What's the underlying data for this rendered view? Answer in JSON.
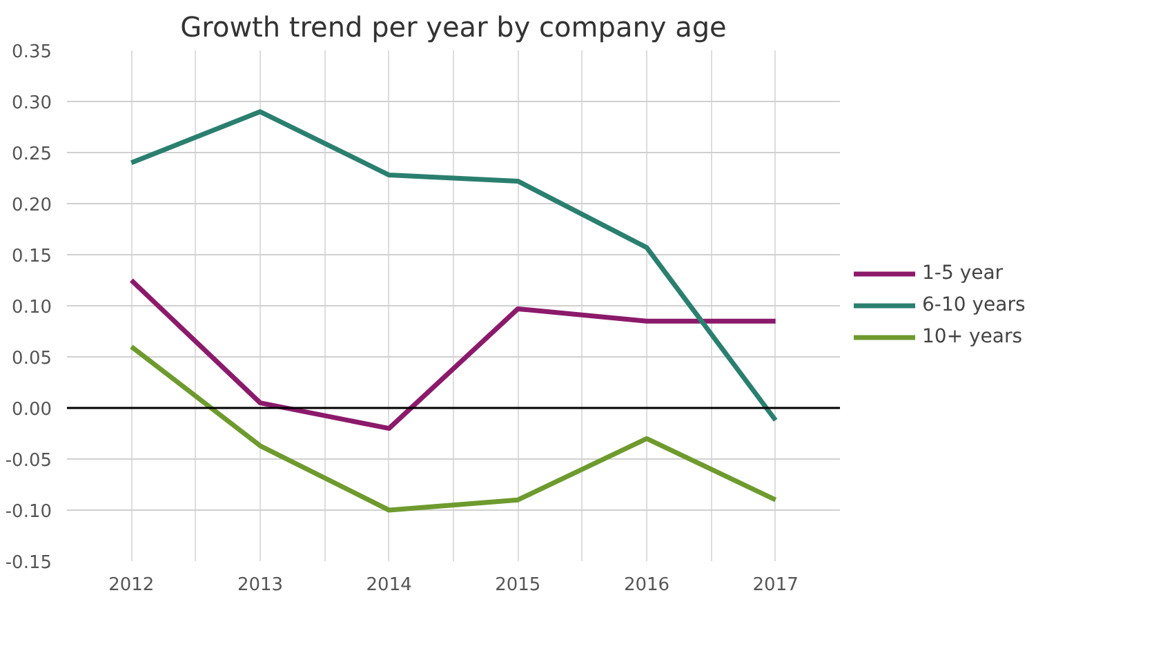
{
  "chart_data": {
    "type": "line",
    "title": "Growth trend per year by company age",
    "categories": [
      "2012",
      "2013",
      "2014",
      "2015",
      "2016",
      "2017"
    ],
    "series": [
      {
        "name": "1-5 year",
        "color": "#8b1a6b",
        "values": [
          0.125,
          0.005,
          -0.02,
          0.097,
          0.085,
          0.085
        ]
      },
      {
        "name": "6-10 years",
        "color": "#2a7f6f",
        "values": [
          0.24,
          0.29,
          0.228,
          0.222,
          0.157,
          -0.012
        ]
      },
      {
        "name": "10+ years",
        "color": "#6e9a2e",
        "values": [
          0.06,
          -0.037,
          -0.1,
          -0.09,
          -0.03,
          -0.09
        ]
      }
    ],
    "ylim": [
      -0.15,
      0.35
    ],
    "yticks": [
      {
        "value": -0.15,
        "label": "-0.15"
      },
      {
        "value": -0.1,
        "label": "-0.10"
      },
      {
        "value": -0.05,
        "label": "-0.05"
      },
      {
        "value": 0,
        "label": "0.00"
      },
      {
        "value": 0.05,
        "label": "0.05"
      },
      {
        "value": 0.1,
        "label": "0.10"
      },
      {
        "value": 0.15,
        "label": "0.15"
      },
      {
        "value": 0.2,
        "label": "0.20"
      },
      {
        "value": 0.25,
        "label": "0.25"
      },
      {
        "value": 0.3,
        "label": "0.30"
      },
      {
        "value": 0.35,
        "label": "0.35"
      }
    ],
    "ref_lines": [
      {
        "axis": "y",
        "value": 0,
        "color": "#000000"
      }
    ],
    "grid": true,
    "legend": "right",
    "marker": "none",
    "line_style": "solid"
  }
}
